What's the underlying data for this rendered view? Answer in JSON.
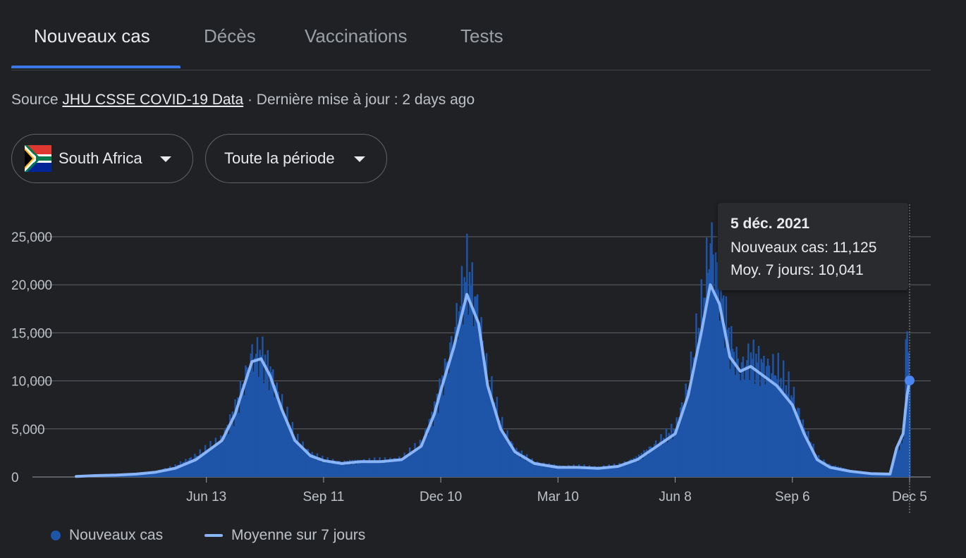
{
  "tabs": [
    {
      "label": "Nouveaux cas",
      "active": true
    },
    {
      "label": "Décès",
      "active": false
    },
    {
      "label": "Vaccinations",
      "active": false
    },
    {
      "label": "Tests",
      "active": false
    }
  ],
  "source": {
    "prefix": "Source",
    "link": "JHU CSSE COVID-19 Data",
    "suffix": "· Dernière mise à jour : 2 days ago"
  },
  "filters": {
    "country": "South Africa",
    "period": "Toute la période"
  },
  "tooltip": {
    "date": "5 déc. 2021",
    "new_cases": "Nouveaux cas: 11,125",
    "avg": "Moy. 7 jours: 10,041"
  },
  "legend": {
    "bars": "Nouveaux cas",
    "line": "Moyenne sur 7 jours"
  },
  "colors": {
    "bar": "#1e55a8",
    "line": "#8ab4f8",
    "background": "#202124",
    "grid": "#5f6368"
  },
  "chart_data": {
    "type": "bar",
    "title": "",
    "xlabel": "",
    "ylabel": "",
    "ylim": [
      0,
      27000
    ],
    "yticks": [
      0,
      5000,
      10000,
      15000,
      20000,
      25000
    ],
    "ytick_labels": [
      "0",
      "5,000",
      "10,000",
      "15,000",
      "20,000",
      "25,000"
    ],
    "xticks": [
      "2020-06-13",
      "2020-09-11",
      "2020-12-10",
      "2021-03-10",
      "2021-06-08",
      "2021-09-06",
      "2021-12-05"
    ],
    "xtick_labels": [
      "Jun 13",
      "Sep 11",
      "Dec 10",
      "Mar 10",
      "Jun 8",
      "Sep 6",
      "Dec 5"
    ],
    "series": [
      {
        "name": "Nouveaux cas",
        "kind": "bars",
        "note": "daily values interpolated from weekly readings",
        "x": [
          "2020-03-05",
          "2020-03-20",
          "2020-04-05",
          "2020-04-20",
          "2020-05-05",
          "2020-05-20",
          "2020-06-05",
          "2020-06-13",
          "2020-06-25",
          "2020-07-05",
          "2020-07-12",
          "2020-07-18",
          "2020-07-25",
          "2020-08-01",
          "2020-08-10",
          "2020-08-20",
          "2020-09-01",
          "2020-09-11",
          "2020-09-25",
          "2020-10-10",
          "2020-10-25",
          "2020-11-10",
          "2020-11-25",
          "2020-12-05",
          "2020-12-10",
          "2020-12-20",
          "2020-12-30",
          "2021-01-08",
          "2021-01-15",
          "2021-01-25",
          "2021-02-05",
          "2021-02-20",
          "2021-03-10",
          "2021-03-25",
          "2021-04-10",
          "2021-04-25",
          "2021-05-10",
          "2021-05-25",
          "2021-06-08",
          "2021-06-18",
          "2021-06-28",
          "2021-07-05",
          "2021-07-12",
          "2021-07-20",
          "2021-07-28",
          "2021-08-05",
          "2021-08-15",
          "2021-08-25",
          "2021-09-06",
          "2021-09-15",
          "2021-09-25",
          "2021-10-05",
          "2021-10-20",
          "2021-11-05",
          "2021-11-20",
          "2021-11-25",
          "2021-11-30",
          "2021-12-03",
          "2021-12-05"
        ],
        "values": [
          100,
          200,
          250,
          350,
          600,
          1100,
          2200,
          2800,
          4000,
          7000,
          10000,
          12500,
          12800,
          11000,
          7500,
          4000,
          2400,
          1800,
          1500,
          1700,
          1700,
          1900,
          3500,
          7000,
          9500,
          14500,
          21500,
          17000,
          10000,
          5500,
          2800,
          1500,
          1100,
          1100,
          1000,
          1200,
          2000,
          3500,
          5000,
          9500,
          17000,
          24500,
          20000,
          14000,
          11000,
          12500,
          11500,
          11000,
          8500,
          5000,
          2000,
          1200,
          700,
          400,
          350,
          2800,
          4000,
          16000,
          11125
        ]
      },
      {
        "name": "Moyenne sur 7 jours",
        "kind": "line",
        "x": [
          "2020-03-05",
          "2020-03-20",
          "2020-04-05",
          "2020-04-20",
          "2020-05-05",
          "2020-05-20",
          "2020-06-05",
          "2020-06-13",
          "2020-06-25",
          "2020-07-05",
          "2020-07-12",
          "2020-07-18",
          "2020-07-25",
          "2020-08-01",
          "2020-08-10",
          "2020-08-20",
          "2020-09-01",
          "2020-09-11",
          "2020-09-25",
          "2020-10-10",
          "2020-10-25",
          "2020-11-10",
          "2020-11-25",
          "2020-12-05",
          "2020-12-10",
          "2020-12-20",
          "2020-12-30",
          "2021-01-08",
          "2021-01-15",
          "2021-01-25",
          "2021-02-05",
          "2021-02-20",
          "2021-03-10",
          "2021-03-25",
          "2021-04-10",
          "2021-04-25",
          "2021-05-10",
          "2021-05-25",
          "2021-06-08",
          "2021-06-18",
          "2021-06-28",
          "2021-07-05",
          "2021-07-12",
          "2021-07-20",
          "2021-07-28",
          "2021-08-05",
          "2021-08-15",
          "2021-08-25",
          "2021-09-06",
          "2021-09-15",
          "2021-09-25",
          "2021-10-05",
          "2021-10-20",
          "2021-11-05",
          "2021-11-20",
          "2021-11-25",
          "2021-11-30",
          "2021-12-03",
          "2021-12-05"
        ],
        "values": [
          50,
          150,
          200,
          300,
          500,
          900,
          1800,
          2600,
          3800,
          6500,
          9500,
          12000,
          12300,
          10500,
          7000,
          3800,
          2200,
          1700,
          1400,
          1600,
          1600,
          1800,
          3200,
          6500,
          9000,
          13500,
          19000,
          16000,
          9500,
          5000,
          2600,
          1400,
          1000,
          1000,
          900,
          1100,
          1800,
          3200,
          4500,
          8500,
          15000,
          20000,
          18000,
          12500,
          11000,
          11500,
          10500,
          9500,
          7500,
          4500,
          1800,
          1000,
          600,
          350,
          300,
          3000,
          4500,
          8500,
          10041
        ]
      }
    ],
    "highlight": {
      "x": "2021-12-05",
      "value": 10041
    }
  }
}
